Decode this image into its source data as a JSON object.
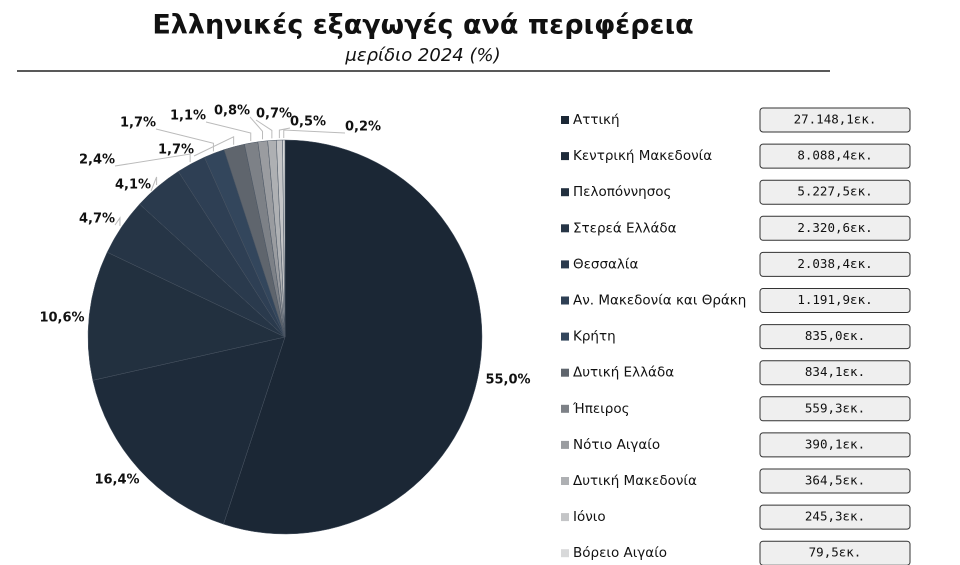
{
  "chart_data": {
    "type": "pie",
    "title": "Ελληνικές εξαγωγές ανά περιφέρεια",
    "subtitle": "μερίδιο 2024 (%)",
    "categories": [
      "Αττική",
      "Κεντρική Μακεδονία",
      "Πελοπόννησος",
      "Στερεά Ελλάδα",
      "Θεσσαλία",
      "Αν. Μακεδονία και Θράκη",
      "Κρήτη",
      "Δυτική Ελλάδα",
      "Ήπειρος",
      "Νότιο Αιγαίο",
      "Δυτική Μακεδονία",
      "Ιόνιο",
      "Βόρειο Αιγαίο"
    ],
    "values": [
      55.0,
      16.4,
      10.6,
      4.7,
      4.1,
      2.4,
      1.7,
      1.7,
      1.1,
      0.8,
      0.7,
      0.5,
      0.2
    ],
    "value_labels": [
      "55,0%",
      "16,4%",
      "10,6%",
      "4,7%",
      "4,1%",
      "2,4%",
      "1,7%",
      "1,7%",
      "1,1%",
      "0,8%",
      "0,7%",
      "0,5%",
      "0,2%"
    ],
    "amounts": [
      "27.148,1εκ.",
      "8.088,4εκ.",
      "5.227,5εκ.",
      "2.320,6εκ.",
      "2.038,4εκ.",
      "1.191,9εκ.",
      "835,0εκ.",
      "834,1εκ.",
      "559,3εκ.",
      "390,1εκ.",
      "364,5εκ.",
      "245,3εκ.",
      "79,5εκ."
    ],
    "colors": [
      "#1b2735",
      "#1e2b3a",
      "#22303f",
      "#263546",
      "#2a3a4d",
      "#2e3f54",
      "#33465c",
      "#5f656d",
      "#7d8187",
      "#9a9ca0",
      "#aeb0b3",
      "#c4c5c7",
      "#d8d9da"
    ]
  }
}
